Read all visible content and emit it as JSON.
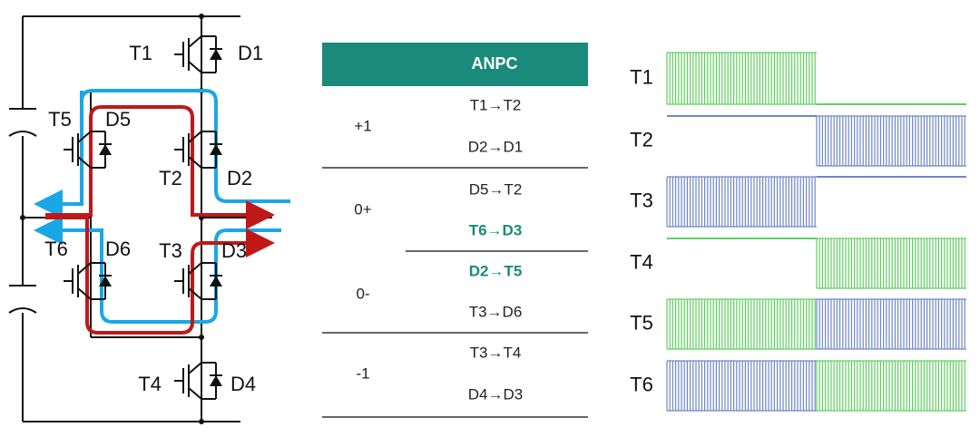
{
  "circuit": {
    "switches": [
      "T1",
      "T2",
      "T3",
      "T4",
      "T5",
      "T6"
    ],
    "diodes": [
      "D1",
      "D2",
      "D3",
      "D4",
      "D5",
      "D6"
    ]
  },
  "table": {
    "header": "ANPC",
    "rows": [
      {
        "state": "+1",
        "paths": [
          "T1→T2",
          "D2→D1"
        ]
      },
      {
        "state": "0+",
        "paths": [
          "D5→T2",
          "T6→D3"
        ]
      },
      {
        "state": "0-",
        "paths": [
          "D2→T5",
          "T3→D6"
        ]
      },
      {
        "state": "-1",
        "paths": [
          "T3→T4",
          "D4→D3"
        ]
      }
    ]
  },
  "waveforms": {
    "labels": [
      "T1",
      "T2",
      "T3",
      "T4",
      "T5",
      "T6"
    ]
  }
}
